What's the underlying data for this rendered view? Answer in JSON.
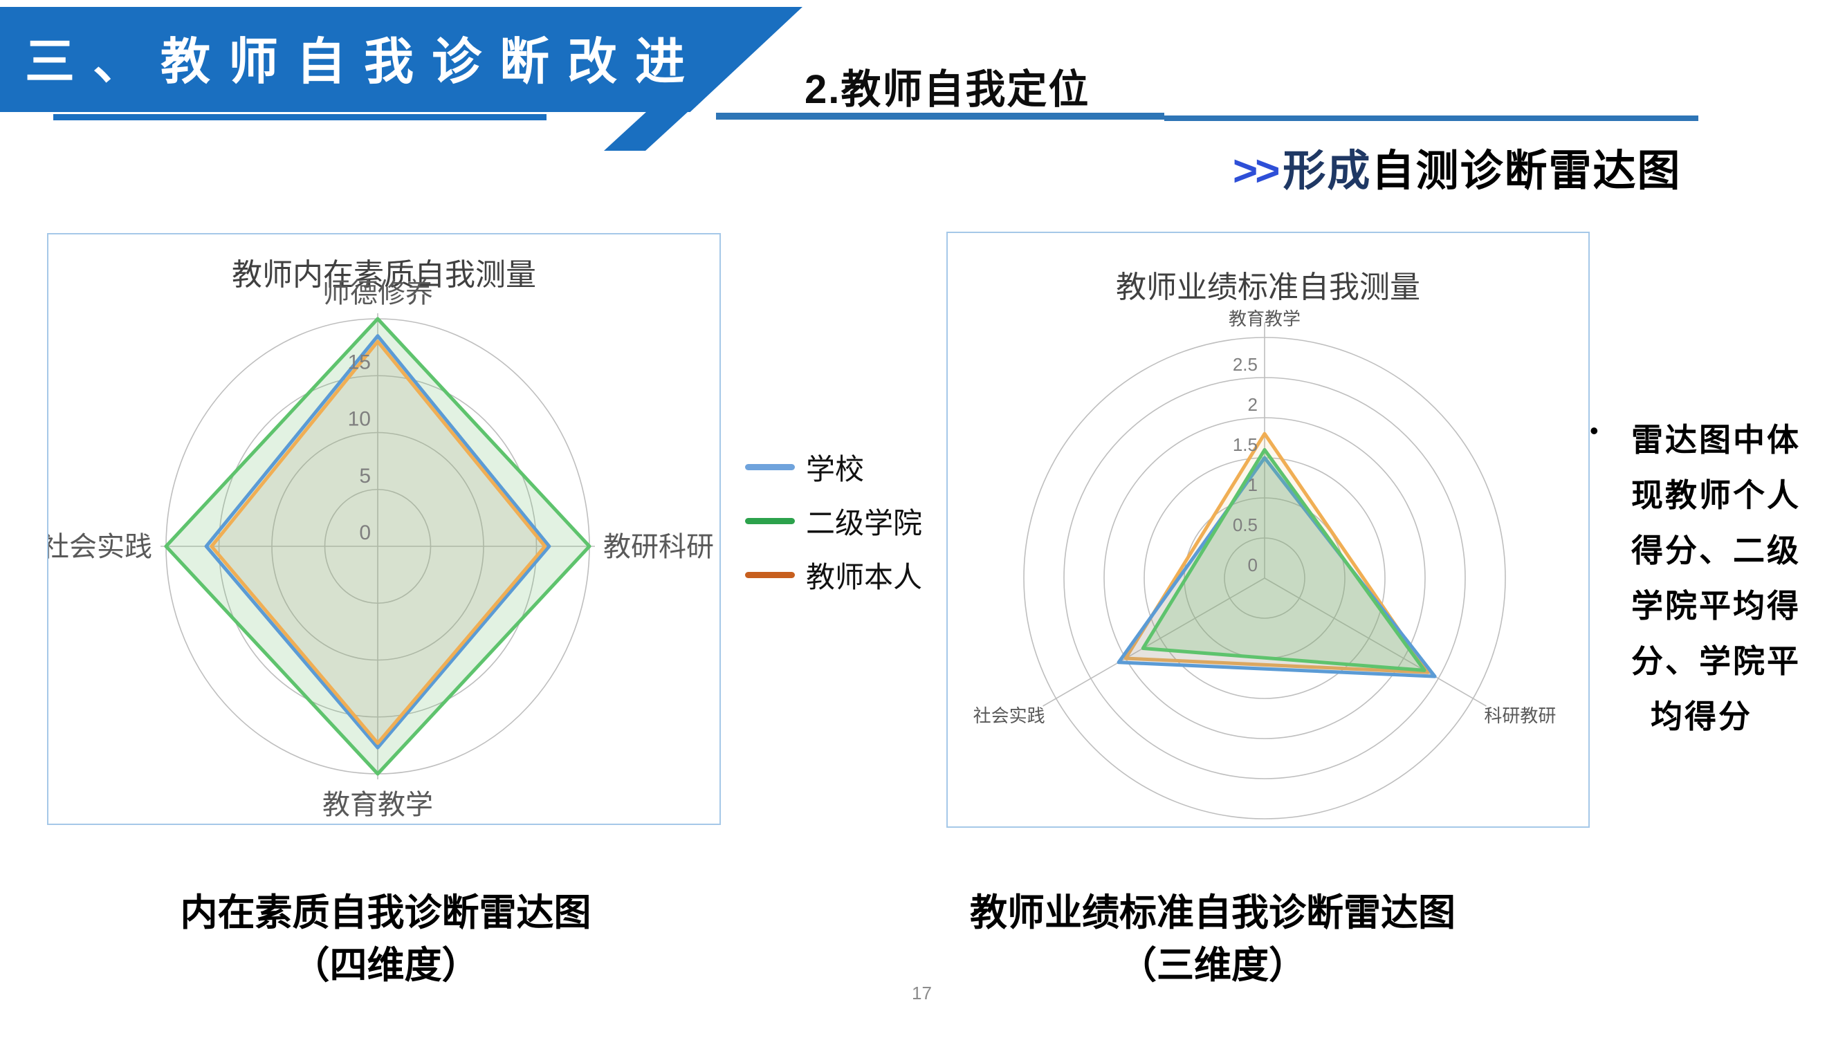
{
  "slide": {
    "banner_title": "三、教师自我诊断改进",
    "section_title": "2.教师自我定位",
    "headline": {
      "prefix": ">>",
      "emph": "形成",
      "rest": "自测诊断雷达图"
    },
    "page_number": "17"
  },
  "colors": {
    "banner_blue": "#1A6FC0",
    "underline_blue": "#2E75B6",
    "arrow_blue": "#2E4FD7",
    "emph_navy": "#1F3864",
    "panel_border": "#A5C8E8",
    "grid_gray": "#BEBEBE",
    "axis_text": "#595959",
    "tick_text": "#7F7F7F",
    "pagenum_gray": "#8C8C8C"
  },
  "legend": {
    "items": [
      {
        "label": "学校",
        "color": "#6FA3DC"
      },
      {
        "label": "二级学院",
        "color": "#2CA24C"
      },
      {
        "label": "教师本人",
        "color": "#C75F1E"
      }
    ]
  },
  "bullet_note": {
    "bullet": "•",
    "lines": [
      "雷达图中体",
      "现教师个人",
      "得分、二级",
      "学院平均得",
      "分、学院平",
      "均得分"
    ]
  },
  "left_caption": {
    "lines": [
      "内在素质自我诊断雷达图",
      "（四维度）"
    ]
  },
  "right_caption": {
    "lines": [
      "教师业绩标准自我诊断雷达图",
      "（三维度）"
    ]
  },
  "chart_data": [
    {
      "type": "radar",
      "title": "教师内在素质自我测量",
      "categories": [
        "师德修养",
        "教研科研",
        "教育教学",
        "社会实践"
      ],
      "series": [
        {
          "name": "学校",
          "color": "#5B9BD5",
          "fill": "rgba(91,155,213,0.10)",
          "values": [
            18.5,
            16.2,
            17.7,
            16.2
          ]
        },
        {
          "name": "二级学院",
          "color": "#5EC36D",
          "fill": "rgba(110,190,110,0.20)",
          "values": [
            20,
            20,
            20,
            20
          ]
        },
        {
          "name": "教师本人",
          "color": "#F0AE54",
          "fill": "rgba(240,174,84,0.12)",
          "values": [
            18,
            15.8,
            17.3,
            15.7
          ]
        }
      ],
      "ticks": [
        0,
        5,
        10,
        15
      ],
      "max": 20,
      "ring_step": 5,
      "grid": "rings-every-5, circular gridlines, no legend inside chart"
    },
    {
      "type": "radar",
      "title": "教师业绩标准自我测量",
      "categories": [
        "教育教学",
        "科研教研",
        "社会实践"
      ],
      "series": [
        {
          "name": "学校",
          "color": "#5B9BD5",
          "fill": "rgba(128,140,155,0.18)",
          "values": [
            1.5,
            2.45,
            2.1
          ]
        },
        {
          "name": "二级学院",
          "color": "#5EC36D",
          "fill": "rgba(110,190,110,0.25)",
          "values": [
            1.6,
            2.3,
            1.75
          ]
        },
        {
          "name": "教师本人",
          "color": "#F0AE54",
          "fill": "rgba(240,174,84,0.10)",
          "values": [
            1.8,
            2.35,
            2.0
          ]
        }
      ],
      "ticks": [
        0,
        0.5,
        1,
        1.5,
        2,
        2.5
      ],
      "max": 3,
      "ring_step": 0.5,
      "grid": "rings-every-0.5, circular gridlines, no legend inside chart"
    }
  ]
}
